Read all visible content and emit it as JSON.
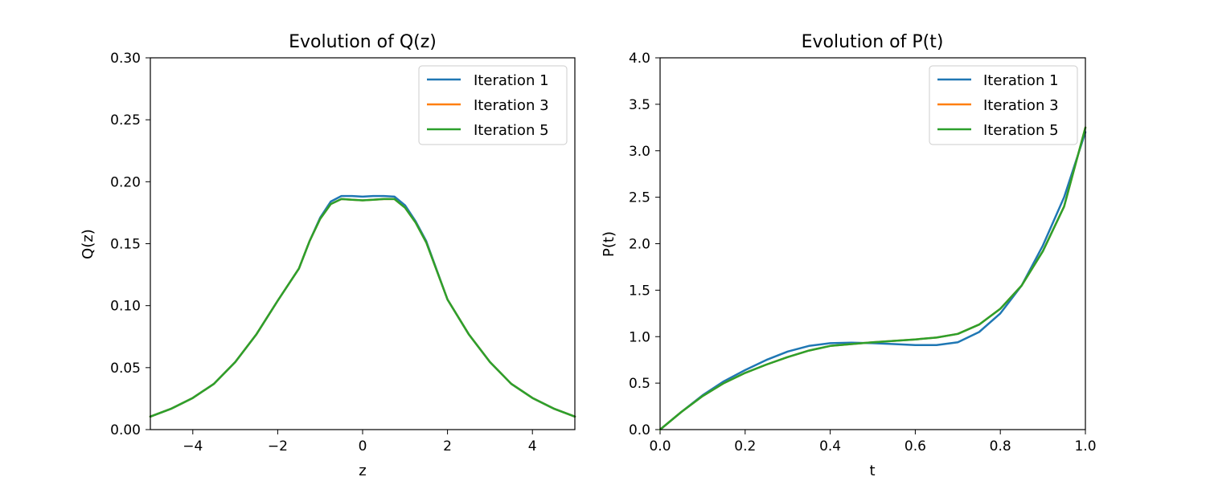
{
  "chart_data": [
    {
      "type": "line",
      "title": "Evolution of Q(z)",
      "xlabel": "z",
      "ylabel": "Q(z)",
      "xlim": [
        -5,
        5
      ],
      "ylim": [
        0,
        0.3
      ],
      "xticks": [
        -4,
        -2,
        0,
        2,
        4
      ],
      "xtick_labels": [
        "−4",
        "−2",
        "0",
        "2",
        "4"
      ],
      "yticks": [
        0,
        0.05,
        0.1,
        0.15,
        0.2,
        0.25,
        0.3
      ],
      "ytick_labels": [
        "0.00",
        "0.05",
        "0.10",
        "0.15",
        "0.20",
        "0.25",
        "0.30"
      ],
      "grid": false,
      "legend_position": "top-right",
      "series": [
        {
          "name": "Iteration 1",
          "color": "#1f77b4",
          "x": [
            -5,
            -4.5,
            -4,
            -3.5,
            -3,
            -2.5,
            -2,
            -1.5,
            -1.25,
            -1,
            -0.75,
            -0.5,
            -0.25,
            0,
            0.25,
            0.5,
            0.75,
            1,
            1.25,
            1.5,
            2,
            2.5,
            3,
            3.5,
            4,
            4.5,
            5
          ],
          "y": [
            0.0105,
            0.017,
            0.0255,
            0.037,
            0.0545,
            0.077,
            0.104,
            0.13,
            0.152,
            0.171,
            0.184,
            0.1885,
            0.1885,
            0.188,
            0.1885,
            0.1885,
            0.188,
            0.181,
            0.168,
            0.152,
            0.105,
            0.077,
            0.0545,
            0.037,
            0.0255,
            0.017,
            0.0105
          ]
        },
        {
          "name": "Iteration 3",
          "color": "#ff7f0e",
          "x": [
            -5,
            -4.5,
            -4,
            -3.5,
            -3,
            -2.5,
            -2,
            -1.5,
            -1.25,
            -1,
            -0.75,
            -0.5,
            -0.25,
            0,
            0.25,
            0.5,
            0.75,
            1,
            1.25,
            1.5,
            2,
            2.5,
            3,
            3.5,
            4,
            4.5,
            5
          ],
          "y": [
            0.0105,
            0.017,
            0.0255,
            0.037,
            0.0545,
            0.077,
            0.104,
            0.13,
            0.152,
            0.17,
            0.182,
            0.186,
            0.1855,
            0.185,
            0.1855,
            0.186,
            0.186,
            0.179,
            0.167,
            0.151,
            0.105,
            0.077,
            0.0545,
            0.037,
            0.0255,
            0.017,
            0.0105
          ]
        },
        {
          "name": "Iteration 5",
          "color": "#2ca02c",
          "x": [
            -5,
            -4.5,
            -4,
            -3.5,
            -3,
            -2.5,
            -2,
            -1.5,
            -1.25,
            -1,
            -0.75,
            -0.5,
            -0.25,
            0,
            0.25,
            0.5,
            0.75,
            1,
            1.25,
            1.5,
            2,
            2.5,
            3,
            3.5,
            4,
            4.5,
            5
          ],
          "y": [
            0.0105,
            0.017,
            0.0255,
            0.037,
            0.0545,
            0.077,
            0.104,
            0.13,
            0.152,
            0.17,
            0.182,
            0.186,
            0.1855,
            0.185,
            0.1855,
            0.186,
            0.186,
            0.179,
            0.167,
            0.151,
            0.105,
            0.077,
            0.0545,
            0.037,
            0.0255,
            0.017,
            0.0105
          ]
        }
      ]
    },
    {
      "type": "line",
      "title": "Evolution of P(t)",
      "xlabel": "t",
      "ylabel": "P(t)",
      "xlim": [
        0,
        1
      ],
      "ylim": [
        0,
        4
      ],
      "xticks": [
        0,
        0.2,
        0.4,
        0.6,
        0.8,
        1.0
      ],
      "xtick_labels": [
        "0.0",
        "0.2",
        "0.4",
        "0.6",
        "0.8",
        "1.0"
      ],
      "yticks": [
        0,
        0.5,
        1,
        1.5,
        2,
        2.5,
        3,
        3.5,
        4
      ],
      "ytick_labels": [
        "0.0",
        "0.5",
        "1.0",
        "1.5",
        "2.0",
        "2.5",
        "3.0",
        "3.5",
        "4.0"
      ],
      "grid": false,
      "legend_position": "top-right",
      "series": [
        {
          "name": "Iteration 1",
          "color": "#1f77b4",
          "x": [
            0,
            0.05,
            0.1,
            0.15,
            0.2,
            0.25,
            0.3,
            0.35,
            0.4,
            0.45,
            0.5,
            0.55,
            0.6,
            0.65,
            0.7,
            0.75,
            0.8,
            0.85,
            0.9,
            0.95,
            1.0
          ],
          "y": [
            0,
            0.19,
            0.37,
            0.52,
            0.64,
            0.75,
            0.84,
            0.9,
            0.93,
            0.935,
            0.93,
            0.92,
            0.91,
            0.91,
            0.94,
            1.05,
            1.25,
            1.55,
            1.98,
            2.5,
            3.2
          ]
        },
        {
          "name": "Iteration 3",
          "color": "#ff7f0e",
          "x": [
            0,
            0.05,
            0.1,
            0.15,
            0.2,
            0.25,
            0.3,
            0.35,
            0.4,
            0.45,
            0.5,
            0.55,
            0.6,
            0.65,
            0.7,
            0.75,
            0.8,
            0.85,
            0.9,
            0.95,
            1.0
          ],
          "y": [
            0,
            0.19,
            0.36,
            0.5,
            0.61,
            0.7,
            0.78,
            0.85,
            0.9,
            0.92,
            0.94,
            0.955,
            0.97,
            0.99,
            1.03,
            1.13,
            1.3,
            1.55,
            1.92,
            2.4,
            3.25
          ]
        },
        {
          "name": "Iteration 5",
          "color": "#2ca02c",
          "x": [
            0,
            0.05,
            0.1,
            0.15,
            0.2,
            0.25,
            0.3,
            0.35,
            0.4,
            0.45,
            0.5,
            0.55,
            0.6,
            0.65,
            0.7,
            0.75,
            0.8,
            0.85,
            0.9,
            0.95,
            1.0
          ],
          "y": [
            0,
            0.19,
            0.36,
            0.5,
            0.61,
            0.7,
            0.78,
            0.85,
            0.9,
            0.92,
            0.94,
            0.955,
            0.97,
            0.99,
            1.03,
            1.13,
            1.3,
            1.55,
            1.92,
            2.4,
            3.25
          ]
        }
      ]
    }
  ]
}
